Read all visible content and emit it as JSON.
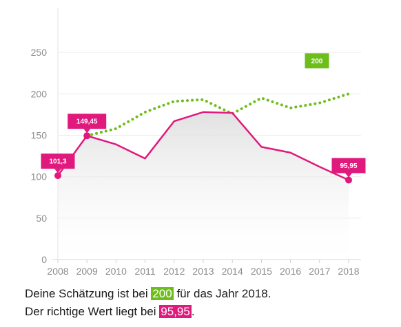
{
  "chart_data": {
    "type": "line",
    "x": [
      2008,
      2009,
      2010,
      2011,
      2012,
      2013,
      2014,
      2015,
      2016,
      2017,
      2018
    ],
    "ylim": [
      0,
      300
    ],
    "yticks": [
      0,
      50,
      100,
      150,
      200,
      250
    ],
    "grid": "horizontal",
    "series": [
      {
        "role": "actual",
        "style": "solid",
        "color": "#e0197d",
        "x": [
          2008,
          2009,
          2010,
          2011,
          2012,
          2013,
          2014,
          2015,
          2016,
          2017,
          2018
        ],
        "values": [
          101.3,
          149.45,
          139,
          122,
          167,
          178,
          177,
          136,
          129,
          112,
          95.95
        ]
      },
      {
        "role": "estimate",
        "style": "dotted",
        "color": "#6dbe1a",
        "x": [
          2009,
          2010,
          2011,
          2012,
          2013,
          2014,
          2015,
          2016,
          2017,
          2018
        ],
        "values": [
          149.45,
          158,
          178,
          191,
          193,
          176,
          195,
          183,
          189,
          200
        ]
      }
    ],
    "annotations": [
      {
        "x": 2008,
        "y": 101.3,
        "label": "101,3",
        "color": "#e0197d"
      },
      {
        "x": 2009,
        "y": 149.45,
        "label": "149,45",
        "color": "#e0197d"
      },
      {
        "x": 2018,
        "y": 95.95,
        "label": "95,95",
        "color": "#e0197d"
      },
      {
        "x": 2018,
        "y": 200,
        "label": "200",
        "color": "#6dbe1a"
      }
    ]
  },
  "result": {
    "estimate_prefix": "Deine Schätzung ist bei ",
    "estimate_value": "200",
    "estimate_suffix": " für das Jahr 2018.",
    "actual_prefix": "Der richtige Wert liegt bei ",
    "actual_value": "95,95",
    "actual_suffix": "."
  }
}
